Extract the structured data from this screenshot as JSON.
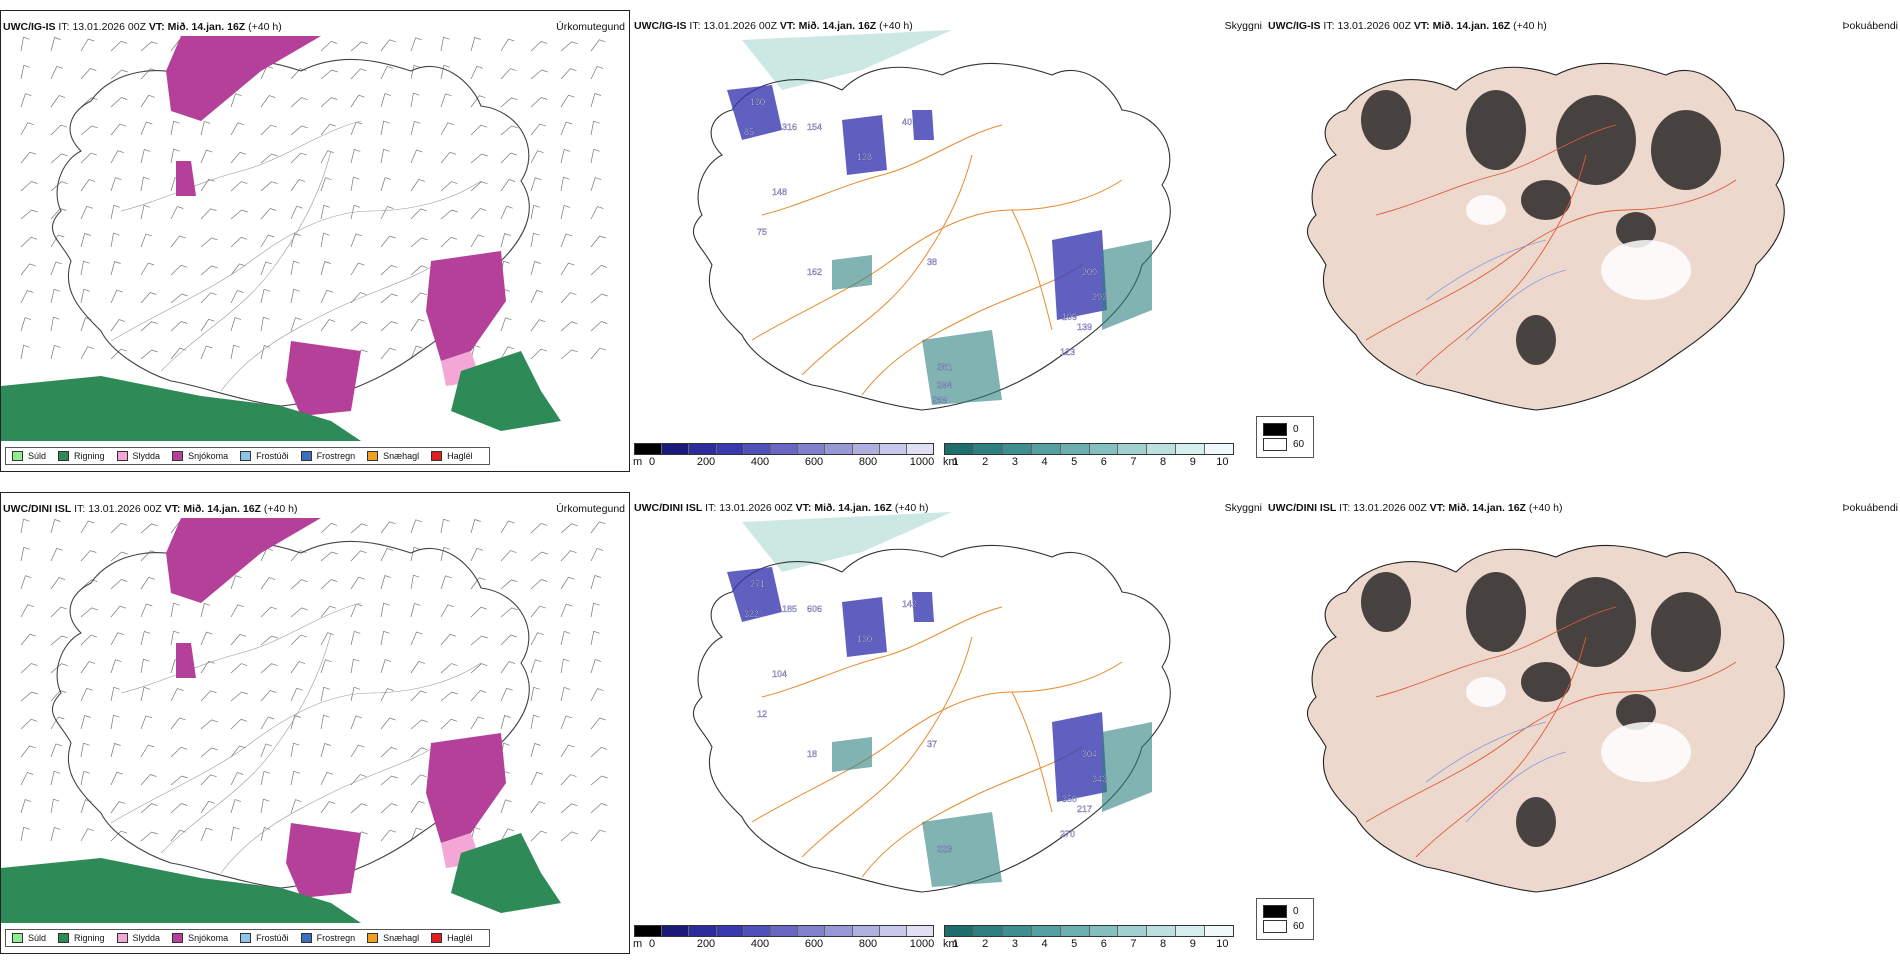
{
  "rows": [
    {
      "model": "UWC/IG-IS",
      "it_label": "IT:",
      "it_value": "13.01.2026 00Z",
      "vt_label": "VT:",
      "vt_value": "Mið. 14.jan. 16Z",
      "lead": "(+40 h)",
      "precip_title": "Úrkomutegund",
      "vis_title": "Skyggni",
      "cloud_title": "Þokuábendi",
      "vis_labels": [
        "130",
        "316",
        "154",
        "85",
        "148",
        "75",
        "162",
        "128",
        "40",
        "38",
        "209",
        "292",
        "109",
        "139",
        "123",
        "281",
        "294",
        "269"
      ]
    },
    {
      "model": "UWC/DINI ISL",
      "it_label": "IT:",
      "it_value": "13.01.2026 00Z",
      "vt_label": "VT:",
      "vt_value": "Mið. 14.jan. 16Z",
      "lead": "(+40 h)",
      "precip_title": "Úrkomutegund",
      "vis_title": "Skyggni",
      "cloud_title": "Þokuábendi",
      "vis_labels": [
        "271",
        "185",
        "606",
        "322",
        "104",
        "12",
        "18",
        "130",
        "142",
        "37",
        "304",
        "343",
        "350",
        "217",
        "270",
        "223"
      ]
    }
  ],
  "precip_legend": [
    {
      "label": "Súld",
      "color": "#90ee90"
    },
    {
      "label": "Rigning",
      "color": "#2e8b57"
    },
    {
      "label": "Slydda",
      "color": "#f4a6d7"
    },
    {
      "label": "Snjókoma",
      "color": "#b5409a"
    },
    {
      "label": "Frostúði",
      "color": "#8ec3ec"
    },
    {
      "label": "Frostregn",
      "color": "#3b6fc0"
    },
    {
      "label": "Snæhagl",
      "color": "#f0a020"
    },
    {
      "label": "Haglél",
      "color": "#e02020"
    }
  ],
  "ceiling_bar": {
    "unit": "m",
    "ticks": [
      "0",
      "200",
      "400",
      "600",
      "800",
      "1000"
    ],
    "colors": [
      "#000000",
      "#1a1a7a",
      "#2c2c9c",
      "#3838b0",
      "#5050bb",
      "#6868c4",
      "#8080cc",
      "#9898d6",
      "#b0b0e0",
      "#c8c8ea",
      "#e0e0f4"
    ]
  },
  "vis_bar": {
    "unit": "km",
    "ticks": [
      "1",
      "2",
      "3",
      "4",
      "5",
      "6",
      "7",
      "8",
      "9",
      "10"
    ],
    "colors": [
      "#1f6e6e",
      "#2e8080",
      "#3e9090",
      "#55a0a0",
      "#6bb0b0",
      "#85c0c0",
      "#a0d0d0",
      "#bce0e0",
      "#d6eeee",
      "#f0fafa"
    ]
  },
  "cloud_legend": [
    {
      "label": "0",
      "color": "#000000"
    },
    {
      "label": "60",
      "color": "#ffffff"
    }
  ]
}
